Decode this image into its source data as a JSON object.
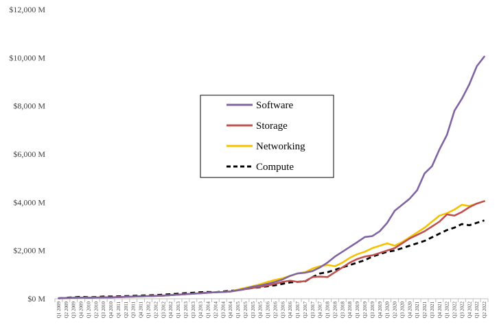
{
  "chart_data": {
    "type": "line",
    "title": "",
    "xlabel": "",
    "ylabel": "",
    "ylim": [
      0,
      12000
    ],
    "y_ticks": [
      0,
      2000,
      4000,
      6000,
      8000,
      10000,
      12000
    ],
    "y_tick_labels": [
      "$0 M",
      "$2,000 M",
      "$4,000 M",
      "$6,000 M",
      "$8,000 M",
      "$10,000 M",
      "$12,000 M"
    ],
    "grid": false,
    "legend_position": "center",
    "categories": [
      "Q1 2009",
      "Q2 2009",
      "Q3 2009",
      "Q4 2009",
      "Q1 2010",
      "Q2 2010",
      "Q3 2010",
      "Q4 2010",
      "Q1 2011",
      "Q2 2011",
      "Q3 2011",
      "Q4 2011",
      "Q1 2012",
      "Q2 2012",
      "Q3 2012",
      "Q4 2012",
      "Q1 2013",
      "Q2 2013",
      "Q3 2013",
      "Q4 2013",
      "Q1 2014",
      "Q2 2014",
      "Q3 2014",
      "Q4 2014",
      "Q1 2015",
      "Q2 2015",
      "Q3 2015",
      "Q4 2015",
      "Q1 2016",
      "Q2 2016",
      "Q3 2016",
      "Q4 2016",
      "Q1 2017",
      "Q2 2017",
      "Q3 2017",
      "Q4 2017",
      "Q1 2018",
      "Q2 2018",
      "Q3 2018",
      "Q4 2018",
      "Q1 2019",
      "Q2 2019",
      "Q3 2019",
      "Q4 2019",
      "Q1 2020",
      "Q2 2020",
      "Q3 2020",
      "Q4 2020",
      "Q1 2021",
      "Q2 2021",
      "Q3 2021",
      "Q4 2021",
      "Q1 2022",
      "Q2 2022",
      "Q3 2022",
      "Q4 2022",
      "Q1 2022",
      "Q2 2022"
    ],
    "series": [
      {
        "name": "Software",
        "color": "#8064a2",
        "dash": "solid",
        "values": [
          20,
          30,
          40,
          50,
          40,
          50,
          60,
          60,
          70,
          80,
          90,
          100,
          110,
          120,
          130,
          150,
          170,
          190,
          210,
          230,
          250,
          270,
          280,
          300,
          350,
          420,
          500,
          550,
          620,
          700,
          800,
          950,
          1050,
          1080,
          1150,
          1300,
          1500,
          1750,
          1950,
          2150,
          2350,
          2560,
          2600,
          2800,
          3150,
          3650,
          3900,
          4150,
          4500,
          5200,
          5500,
          6200,
          6800,
          7800,
          8300,
          8900,
          9650,
          10050
        ]
      },
      {
        "name": "Storage",
        "color": "#c0504d",
        "dash": "solid",
        "values": [
          20,
          30,
          40,
          50,
          40,
          50,
          60,
          60,
          70,
          80,
          90,
          100,
          110,
          120,
          130,
          150,
          170,
          190,
          210,
          230,
          250,
          270,
          280,
          300,
          350,
          400,
          450,
          500,
          550,
          620,
          700,
          750,
          700,
          730,
          900,
          920,
          900,
          1100,
          1300,
          1500,
          1650,
          1750,
          1800,
          1900,
          2000,
          2100,
          2300,
          2500,
          2650,
          2800,
          3000,
          3200,
          3500,
          3450,
          3600,
          3800,
          3950,
          4050
        ]
      },
      {
        "name": "Networking",
        "color": "#f4c200",
        "dash": "solid",
        "values": [
          20,
          30,
          40,
          50,
          40,
          50,
          60,
          60,
          70,
          80,
          90,
          100,
          110,
          120,
          130,
          150,
          170,
          190,
          210,
          230,
          250,
          270,
          280,
          300,
          380,
          450,
          520,
          600,
          700,
          780,
          850,
          950,
          1050,
          1100,
          1250,
          1350,
          1400,
          1350,
          1500,
          1700,
          1850,
          1950,
          2100,
          2200,
          2300,
          2200,
          2350,
          2550,
          2750,
          2950,
          3200,
          3450,
          3550,
          3700,
          3900,
          3850,
          3950,
          4050
        ]
      },
      {
        "name": "Compute",
        "color": "#000000",
        "dash": "dashed",
        "values": [
          20,
          40,
          60,
          80,
          60,
          70,
          90,
          90,
          100,
          110,
          120,
          130,
          140,
          150,
          170,
          190,
          210,
          230,
          250,
          270,
          280,
          270,
          300,
          330,
          350,
          400,
          450,
          480,
          520,
          560,
          620,
          680,
          700,
          720,
          900,
          1050,
          1100,
          1200,
          1300,
          1400,
          1500,
          1600,
          1750,
          1850,
          1950,
          2000,
          2100,
          2200,
          2300,
          2400,
          2550,
          2700,
          2850,
          2950,
          3100,
          3050,
          3150,
          3250
        ]
      }
    ]
  }
}
